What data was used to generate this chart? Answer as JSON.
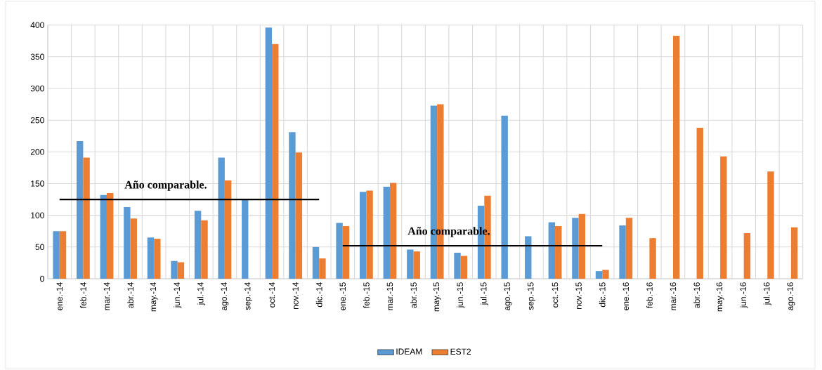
{
  "chart_data": {
    "type": "bar",
    "categories": [
      "ene.-14",
      "feb.-14",
      "mar.-14",
      "abr.-14",
      "may.-14",
      "jun.-14",
      "jul.-14",
      "ago.-14",
      "sep.-14",
      "oct.-14",
      "nov.-14",
      "dic.-14",
      "ene.-15",
      "feb.-15",
      "mar.-15",
      "abr.-15",
      "may.-15",
      "jun.-15",
      "jul.-15",
      "ago.-15",
      "sep.-15",
      "oct.-15",
      "nov.-15",
      "dic.-15",
      "ene.-16",
      "feb.-16",
      "mar.-16",
      "abr.-16",
      "may.-16",
      "jun.-16",
      "jul.-16",
      "ago.-16"
    ],
    "series": [
      {
        "name": "IDEAM",
        "color": "#5b9bd5",
        "values": [
          75,
          217,
          132,
          113,
          65,
          28,
          107,
          191,
          125,
          396,
          231,
          50,
          88,
          137,
          145,
          46,
          273,
          41,
          115,
          257,
          67,
          89,
          96,
          12,
          84,
          null,
          null,
          null,
          null,
          null,
          null,
          null
        ]
      },
      {
        "name": "EST2",
        "color": "#ed7d31",
        "values": [
          75,
          191,
          135,
          95,
          63,
          26,
          92,
          155,
          null,
          370,
          199,
          32,
          83,
          139,
          151,
          43,
          275,
          36,
          131,
          null,
          null,
          83,
          102,
          14,
          96,
          64,
          383,
          238,
          193,
          72,
          169,
          81
        ]
      },
      {
        "type": "line",
        "color": "#000000",
        "values": [
          125,
          125,
          125,
          125,
          125,
          125,
          125,
          125,
          125,
          125,
          125,
          125,
          null,
          null,
          null,
          null,
          null,
          null,
          null,
          null,
          null,
          null,
          null,
          null,
          null,
          null,
          null,
          null,
          null,
          null,
          null,
          null
        ]
      },
      {
        "type": "line",
        "color": "#000000",
        "values": [
          null,
          null,
          null,
          null,
          null,
          null,
          null,
          null,
          null,
          null,
          null,
          null,
          52,
          52,
          52,
          52,
          52,
          52,
          52,
          52,
          52,
          52,
          52,
          52,
          null,
          null,
          null,
          null,
          null,
          null,
          null,
          null
        ]
      }
    ],
    "annotations": [
      "Año comparable.",
      "Año comparable."
    ],
    "ylim": [
      0,
      400
    ],
    "yticks": [
      0,
      50,
      100,
      150,
      200,
      250,
      300,
      350,
      400
    ],
    "grid": true,
    "legend": "bottom"
  }
}
